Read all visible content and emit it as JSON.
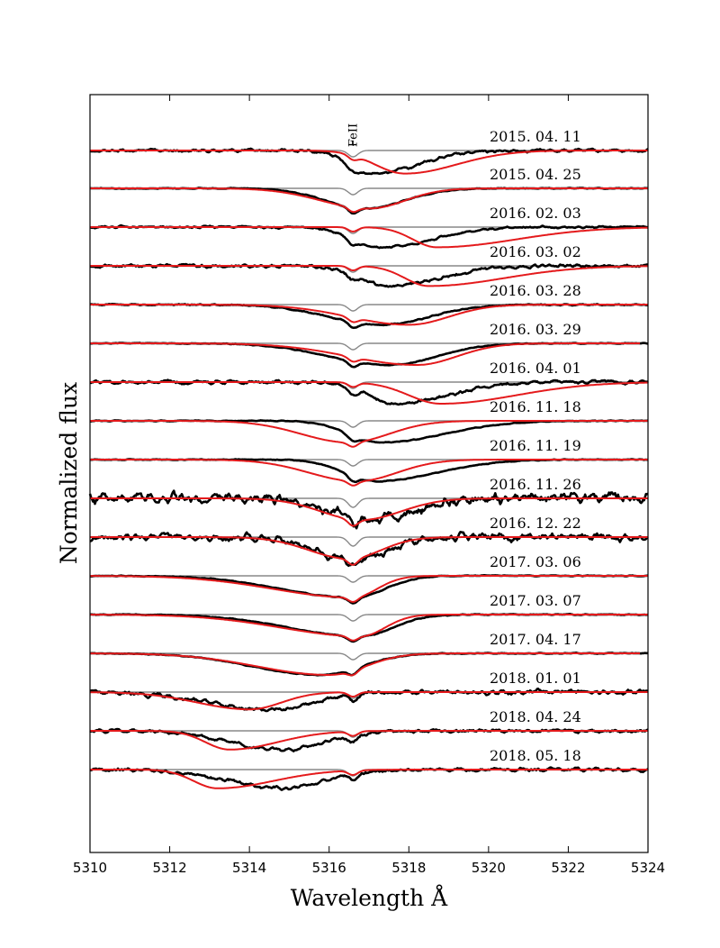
{
  "chart_data": {
    "type": "line",
    "xlabel": "Wavelength Å",
    "ylabel": "Normalized flux",
    "xlim": [
      5310,
      5324
    ],
    "x_ticks": [
      "5310",
      "5312",
      "5314",
      "5316",
      "5318",
      "5320",
      "5322",
      "5324"
    ],
    "x_tick_values": [
      5310,
      5312,
      5314,
      5316,
      5318,
      5320,
      5322,
      5324
    ],
    "line_marker": {
      "label": "FeII",
      "wavelength": 5316.6
    },
    "colors": {
      "observed": "#000000",
      "model": "#e41a1c",
      "narrow_component": "#888888"
    },
    "series_roles": [
      "observed spectrum",
      "model fit",
      "narrow FeII component"
    ],
    "spectra": [
      {
        "date": "2015. 04. 11",
        "offset": 0,
        "noise": 0.7,
        "model_ds": [
          5317.9,
          0.75,
          1.3,
          1.6
        ],
        "obs_ds": [
          5317.0,
          0.5,
          1.2,
          1.6
        ]
      },
      {
        "date": "2015. 04. 25",
        "offset": -42,
        "noise": 0.2,
        "model_ds": [
          5317.0,
          1.2,
          0.9,
          1.4
        ],
        "obs_ds": [
          5316.9,
          1.0,
          1.0,
          1.4
        ]
      },
      {
        "date": "2016. 02. 03",
        "offset": -85,
        "noise": 0.5,
        "model_ds": [
          5318.7,
          0.6,
          2.0,
          1.4
        ],
        "obs_ds": [
          5317.3,
          0.7,
          1.3,
          1.4
        ]
      },
      {
        "date": "2016. 03. 02",
        "offset": -128,
        "noise": 0.8,
        "model_ds": [
          5318.5,
          0.6,
          1.9,
          1.4
        ],
        "obs_ds": [
          5317.6,
          0.8,
          1.2,
          1.4
        ]
      },
      {
        "date": "2016. 03. 28",
        "offset": -171,
        "noise": 0.3,
        "model_ds": [
          5318.0,
          1.5,
          1.0,
          1.4
        ],
        "obs_ds": [
          5317.3,
          1.3,
          1.2,
          1.4
        ]
      },
      {
        "date": "2016. 03. 29",
        "offset": -214,
        "noise": 0.2,
        "model_ds": [
          5318.2,
          1.7,
          1.0,
          1.5
        ],
        "obs_ds": [
          5317.5,
          1.5,
          1.2,
          1.5
        ]
      },
      {
        "date": "2016. 04. 01",
        "offset": -257,
        "noise": 0.8,
        "model_ds": [
          5318.8,
          0.8,
          1.9,
          1.5
        ],
        "obs_ds": [
          5317.7,
          0.7,
          1.3,
          1.5
        ]
      },
      {
        "date": "2016. 11. 18",
        "offset": -300,
        "noise": 0.2,
        "model_ds": [
          5316.5,
          1.2,
          1.0,
          1.5
        ],
        "obs_ds": [
          5317.3,
          0.8,
          1.6,
          1.5
        ]
      },
      {
        "date": "2016. 11. 19",
        "offset": -343,
        "noise": 0.2,
        "model_ds": [
          5316.7,
          1.2,
          1.0,
          1.5
        ],
        "obs_ds": [
          5317.2,
          0.8,
          1.5,
          1.5
        ]
      },
      {
        "date": "2016. 11. 26",
        "offset": -386,
        "noise": 2.4,
        "model_ds": [
          5316.8,
          1.0,
          1.0,
          1.5
        ],
        "obs_ds": [
          5317.0,
          0.9,
          1.1,
          1.5
        ]
      },
      {
        "date": "2016. 12. 22",
        "offset": -429,
        "noise": 1.7,
        "model_ds": [
          5316.5,
          1.0,
          0.8,
          1.5
        ],
        "obs_ds": [
          5316.6,
          0.9,
          0.9,
          1.5
        ]
      },
      {
        "date": "2017. 03. 06",
        "offset": -472,
        "noise": 0.2,
        "model_ds": [
          5316.6,
          2.0,
          0.6,
          1.5
        ],
        "obs_ds": [
          5316.6,
          1.8,
          0.8,
          1.5
        ]
      },
      {
        "date": "2017. 03. 07",
        "offset": -515,
        "noise": 0.2,
        "model_ds": [
          5316.8,
          2.0,
          0.6,
          1.5
        ],
        "obs_ds": [
          5316.8,
          1.8,
          0.8,
          1.5
        ]
      },
      {
        "date": "2017. 04. 17",
        "offset": -558,
        "noise": 0.2,
        "model_ds": [
          5316.0,
          1.8,
          0.9,
          1.5
        ],
        "obs_ds": [
          5315.8,
          1.7,
          1.0,
          1.5
        ]
      },
      {
        "date": "2018. 01. 01",
        "offset": -601,
        "noise": 1.0,
        "model_ds": [
          5314.0,
          1.3,
          0.8,
          1.2
        ],
        "obs_ds": [
          5314.6,
          1.6,
          1.0,
          1.2
        ]
      },
      {
        "date": "2018. 04. 24",
        "offset": -644,
        "noise": 0.8,
        "model_ds": [
          5313.5,
          0.6,
          1.2,
          1.3
        ],
        "obs_ds": [
          5314.8,
          1.3,
          1.1,
          1.3
        ]
      },
      {
        "date": "2018. 05. 18",
        "offset": -687,
        "noise": 0.8,
        "model_ds": [
          5313.2,
          0.6,
          1.4,
          1.3
        ],
        "obs_ds": [
          5314.9,
          1.4,
          1.0,
          1.3
        ]
      }
    ]
  }
}
